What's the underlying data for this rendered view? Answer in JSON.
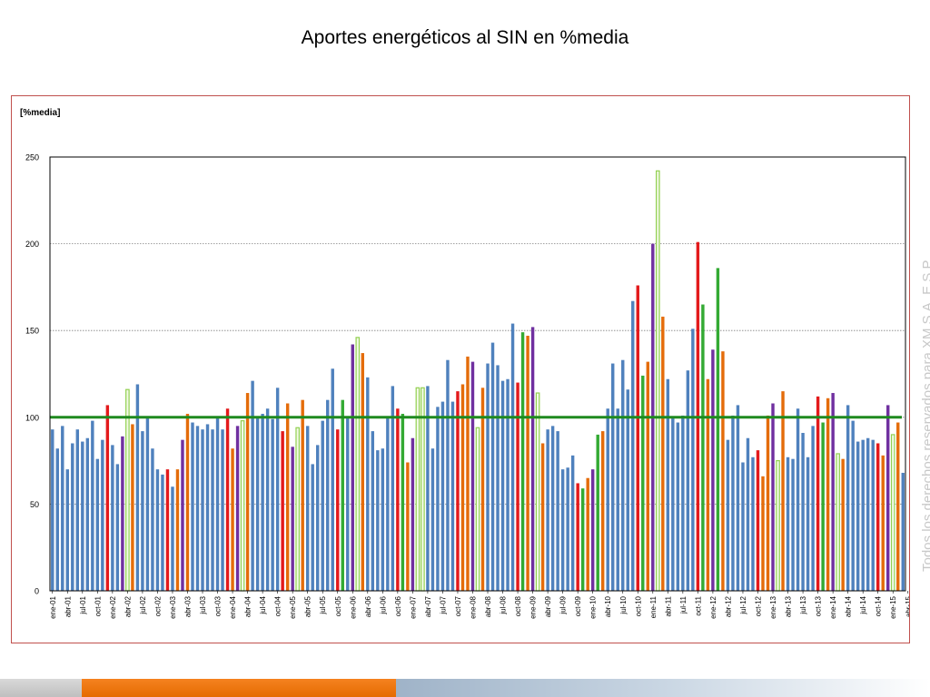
{
  "slide": {
    "title": "Aportes energéticos al SIN en %media"
  },
  "watermark": "Todos los derechos reservados para XM S.A. E.S.P.",
  "colors": {
    "blue": "#4f81bd",
    "red": "#e31a1c",
    "orange": "#e46c0a",
    "purple": "#7030a0",
    "green": "#33aa33",
    "olive": "#77933c",
    "light_green": "#92d050",
    "reference_line": "#1f8a1f",
    "frame": "#c0504d"
  },
  "chart_data": {
    "type": "bar",
    "unit_label": "[%media]",
    "ylim": [
      0,
      250
    ],
    "y_ticks": [
      0,
      50,
      100,
      150,
      200,
      250
    ],
    "grid": "dotted horizontal",
    "reference_line": 100,
    "x_tick_labels": [
      "ene-01",
      "abr-01",
      "jul-01",
      "oct-01",
      "ene-02",
      "abr-02",
      "jul-02",
      "oct-02",
      "ene-03",
      "abr-03",
      "jul-03",
      "oct-03",
      "ene-04",
      "abr-04",
      "jul-04",
      "oct-04",
      "ene-05",
      "abr-05",
      "jul-05",
      "oct-05",
      "ene-06",
      "abr-06",
      "jul-06",
      "oct-06",
      "ene-07",
      "abr-07",
      "jul-07",
      "oct-07",
      "ene-08",
      "abr-08",
      "jul-08",
      "oct-08",
      "ene-09",
      "abr-09",
      "jul-09",
      "oct-09",
      "ene-10",
      "abr-10",
      "jul-10",
      "oct-10",
      "ene-11",
      "abr-11",
      "jul-11",
      "oct-11",
      "ene-12",
      "abr-12",
      "jul-12",
      "oct-12",
      "ene-13",
      "abr-13",
      "jul-13",
      "oct-13",
      "ene-14",
      "abr-14",
      "jul-14",
      "oct-14",
      "ene-15",
      "abr-15"
    ],
    "values": [
      93,
      82,
      95,
      70,
      85,
      93,
      86,
      88,
      98,
      76,
      87,
      107,
      84,
      73,
      89,
      116,
      96,
      119,
      92,
      100,
      82,
      70,
      67,
      70,
      60,
      70,
      87,
      102,
      97,
      95,
      93,
      96,
      93,
      100,
      93,
      105,
      82,
      95,
      98,
      114,
      121,
      100,
      102,
      105,
      99,
      117,
      92,
      108,
      83,
      94,
      110,
      95,
      73,
      84,
      98,
      110,
      128,
      93,
      110,
      100,
      142,
      146,
      137,
      123,
      92,
      81,
      82,
      100,
      118,
      105,
      102,
      74,
      88,
      117,
      117,
      118,
      82,
      106,
      109,
      133,
      109,
      115,
      119,
      135,
      132,
      94,
      117,
      131,
      143,
      130,
      121,
      122,
      154,
      120,
      149,
      147,
      152,
      114,
      85,
      93,
      95,
      92,
      70,
      71,
      78,
      62,
      59,
      65,
      70,
      90,
      92,
      105,
      131,
      105,
      133,
      116,
      167,
      176,
      124,
      132,
      200,
      242,
      158,
      122,
      100,
      97,
      101,
      127,
      151,
      201,
      165,
      122,
      139,
      186,
      138,
      87,
      101,
      107,
      74,
      88,
      77,
      81,
      66,
      101,
      108,
      75,
      115,
      77,
      76,
      105,
      91,
      77,
      95,
      112,
      97,
      111,
      114,
      79,
      76,
      107,
      98,
      86,
      87,
      88,
      87,
      85,
      78,
      107,
      90,
      97,
      68
    ],
    "colors": [
      "b",
      "b",
      "b",
      "b",
      "b",
      "b",
      "b",
      "b",
      "b",
      "b",
      "b",
      "r",
      "b",
      "b",
      "p",
      "l",
      "o",
      "b",
      "b",
      "b",
      "b",
      "b",
      "b",
      "r",
      "b",
      "o",
      "p",
      "o",
      "b",
      "b",
      "b",
      "b",
      "b",
      "b",
      "b",
      "r",
      "o",
      "p",
      "l",
      "o",
      "b",
      "b",
      "b",
      "b",
      "b",
      "b",
      "r",
      "o",
      "p",
      "l",
      "o",
      "b",
      "b",
      "b",
      "b",
      "b",
      "b",
      "r",
      "g",
      "b",
      "p",
      "l",
      "o",
      "b",
      "b",
      "b",
      "b",
      "b",
      "b",
      "r",
      "g",
      "o",
      "p",
      "l",
      "l",
      "b",
      "b",
      "b",
      "b",
      "b",
      "b",
      "r",
      "o",
      "o",
      "p",
      "l",
      "o",
      "b",
      "b",
      "b",
      "b",
      "b",
      "b",
      "r",
      "g",
      "o",
      "p",
      "l",
      "o",
      "b",
      "b",
      "b",
      "b",
      "b",
      "b",
      "r",
      "g",
      "o",
      "p",
      "g",
      "o",
      "b",
      "b",
      "b",
      "b",
      "b",
      "b",
      "r",
      "g",
      "o",
      "p",
      "l",
      "o",
      "b",
      "b",
      "b",
      "b",
      "b",
      "b",
      "r",
      "g",
      "o",
      "p",
      "g",
      "o",
      "b",
      "b",
      "b",
      "b",
      "b",
      "b",
      "r",
      "o",
      "o",
      "p",
      "l",
      "o",
      "b",
      "b",
      "b",
      "b",
      "b",
      "b",
      "r",
      "g",
      "o",
      "p",
      "l",
      "o",
      "b",
      "b",
      "b",
      "b",
      "b",
      "b",
      "r",
      "o",
      "p",
      "l",
      "o"
    ]
  }
}
